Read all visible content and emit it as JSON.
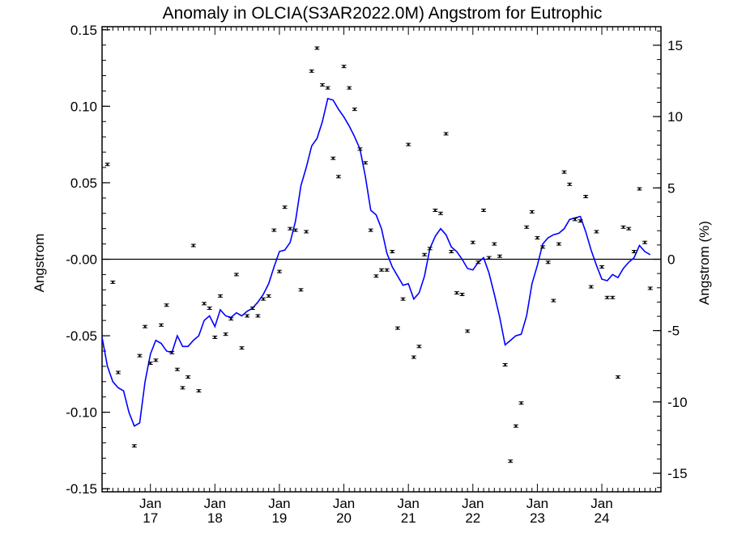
{
  "chart_data": {
    "type": "line",
    "title": "Anomaly in OLCIA(S3AR2022.0M) Angstrom for Eutrophic",
    "ylabel": "Angstrom",
    "ylabel_right": "Angstrom (%)",
    "ylim": [
      -0.152,
      0.152
    ],
    "ylim_right": [
      -16.3,
      16.3
    ],
    "xlim": [
      "2016-04",
      "2024-12"
    ],
    "y_ticks": [
      "-0.15",
      "-0.10",
      "-0.05",
      "-0.00",
      "0.05",
      "0.10",
      "0.15"
    ],
    "y_ticks_right": [
      "-15",
      "-10",
      "-5",
      "0",
      "5",
      "10",
      "15"
    ],
    "x_ticks": [
      {
        "month": "Jan",
        "year": "17",
        "date": "2017-01"
      },
      {
        "month": "Jan",
        "year": "18",
        "date": "2018-01"
      },
      {
        "month": "Jan",
        "year": "19",
        "date": "2019-01"
      },
      {
        "month": "Jan",
        "year": "20",
        "date": "2020-01"
      },
      {
        "month": "Jan",
        "year": "21",
        "date": "2021-01"
      },
      {
        "month": "Jan",
        "year": "22",
        "date": "2022-01"
      },
      {
        "month": "Jan",
        "year": "23",
        "date": "2023-01"
      },
      {
        "month": "Jan",
        "year": "24",
        "date": "2024-01"
      }
    ],
    "zero_line": true,
    "colors": {
      "line": "#0000ff",
      "points": "#000000",
      "axes": "#000000"
    },
    "series": [
      {
        "type": "scatter",
        "role": "monthly anomaly with error bars",
        "points": [
          [
            "2016-05",
            0.062
          ],
          [
            "2016-06",
            -0.015
          ],
          [
            "2016-07",
            -0.074
          ],
          [
            "2016-10",
            -0.122
          ],
          [
            "2016-11",
            -0.063
          ],
          [
            "2016-12",
            -0.044
          ],
          [
            "2017-01",
            -0.068
          ],
          [
            "2017-02",
            -0.066
          ],
          [
            "2017-03",
            -0.043
          ],
          [
            "2017-04",
            -0.03
          ],
          [
            "2017-05",
            -0.061
          ],
          [
            "2017-06",
            -0.072
          ],
          [
            "2017-07",
            -0.084
          ],
          [
            "2017-08",
            -0.077
          ],
          [
            "2017-09",
            0.009
          ],
          [
            "2017-10",
            -0.086
          ],
          [
            "2017-11",
            -0.029
          ],
          [
            "2017-12",
            -0.032
          ],
          [
            "2018-01",
            -0.051
          ],
          [
            "2018-02",
            -0.024
          ],
          [
            "2018-03",
            -0.049
          ],
          [
            "2018-04",
            -0.039
          ],
          [
            "2018-05",
            -0.01
          ],
          [
            "2018-06",
            -0.058
          ],
          [
            "2018-07",
            -0.037
          ],
          [
            "2018-08",
            -0.032
          ],
          [
            "2018-09",
            -0.037
          ],
          [
            "2018-10",
            -0.026
          ],
          [
            "2018-11",
            -0.024
          ],
          [
            "2018-12",
            0.019
          ],
          [
            "2019-01",
            -0.008
          ],
          [
            "2019-02",
            0.034
          ],
          [
            "2019-03",
            0.02
          ],
          [
            "2019-04",
            0.019
          ],
          [
            "2019-05",
            -0.02
          ],
          [
            "2019-06",
            0.018
          ],
          [
            "2019-07",
            0.123
          ],
          [
            "2019-08",
            0.138
          ],
          [
            "2019-09",
            0.114
          ],
          [
            "2019-10",
            0.112
          ],
          [
            "2019-11",
            0.066
          ],
          [
            "2019-12",
            0.054
          ],
          [
            "2020-01",
            0.126
          ],
          [
            "2020-02",
            0.112
          ],
          [
            "2020-03",
            0.098
          ],
          [
            "2020-04",
            0.072
          ],
          [
            "2020-05",
            0.063
          ],
          [
            "2020-06",
            0.019
          ],
          [
            "2020-07",
            -0.011
          ],
          [
            "2020-08",
            -0.007
          ],
          [
            "2020-09",
            -0.007
          ],
          [
            "2020-10",
            0.005
          ],
          [
            "2020-11",
            -0.045
          ],
          [
            "2020-12",
            -0.026
          ],
          [
            "2021-01",
            0.075
          ],
          [
            "2021-02",
            -0.064
          ],
          [
            "2021-03",
            -0.057
          ],
          [
            "2021-04",
            0.003
          ],
          [
            "2021-05",
            0.007
          ],
          [
            "2021-06",
            0.032
          ],
          [
            "2021-07",
            0.03
          ],
          [
            "2021-08",
            0.082
          ],
          [
            "2021-09",
            0.005
          ],
          [
            "2021-10",
            -0.022
          ],
          [
            "2021-11",
            -0.023
          ],
          [
            "2021-12",
            -0.047
          ],
          [
            "2022-01",
            0.011
          ],
          [
            "2022-02",
            -0.002
          ],
          [
            "2022-03",
            0.032
          ],
          [
            "2022-04",
            0.001
          ],
          [
            "2022-05",
            0.01
          ],
          [
            "2022-06",
            0.002
          ],
          [
            "2022-07",
            -0.069
          ],
          [
            "2022-08",
            -0.132
          ],
          [
            "2022-09",
            -0.109
          ],
          [
            "2022-10",
            -0.094
          ],
          [
            "2022-11",
            0.021
          ],
          [
            "2022-12",
            0.031
          ],
          [
            "2023-01",
            0.014
          ],
          [
            "2023-02",
            0.008
          ],
          [
            "2023-03",
            -0.002
          ],
          [
            "2023-04",
            -0.027
          ],
          [
            "2023-05",
            0.01
          ],
          [
            "2023-06",
            0.057
          ],
          [
            "2023-07",
            0.049
          ],
          [
            "2023-08",
            0.026
          ],
          [
            "2023-09",
            0.025
          ],
          [
            "2023-10",
            0.041
          ],
          [
            "2023-11",
            -0.018
          ],
          [
            "2023-12",
            0.018
          ],
          [
            "2024-01",
            -0.005
          ],
          [
            "2024-02",
            -0.025
          ],
          [
            "2024-03",
            -0.025
          ],
          [
            "2024-04",
            -0.077
          ],
          [
            "2024-05",
            0.021
          ],
          [
            "2024-06",
            0.02
          ],
          [
            "2024-07",
            0.005
          ],
          [
            "2024-08",
            0.046
          ],
          [
            "2024-09",
            0.011
          ],
          [
            "2024-10",
            -0.019
          ]
        ]
      },
      {
        "type": "line",
        "role": "smoothed anomaly",
        "points": [
          [
            "2016-04",
            -0.051
          ],
          [
            "2016-05",
            -0.07
          ],
          [
            "2016-06",
            -0.08
          ],
          [
            "2016-07",
            -0.084
          ],
          [
            "2016-08",
            -0.086
          ],
          [
            "2016-09",
            -0.1
          ],
          [
            "2016-10",
            -0.109
          ],
          [
            "2016-11",
            -0.107
          ],
          [
            "2016-12",
            -0.08
          ],
          [
            "2017-01",
            -0.062
          ],
          [
            "2017-02",
            -0.053
          ],
          [
            "2017-03",
            -0.055
          ],
          [
            "2017-04",
            -0.06
          ],
          [
            "2017-05",
            -0.061
          ],
          [
            "2017-06",
            -0.05
          ],
          [
            "2017-07",
            -0.057
          ],
          [
            "2017-08",
            -0.057
          ],
          [
            "2017-09",
            -0.053
          ],
          [
            "2017-10",
            -0.05
          ],
          [
            "2017-11",
            -0.04
          ],
          [
            "2017-12",
            -0.037
          ],
          [
            "2018-01",
            -0.044
          ],
          [
            "2018-02",
            -0.033
          ],
          [
            "2018-03",
            -0.037
          ],
          [
            "2018-04",
            -0.038
          ],
          [
            "2018-05",
            -0.035
          ],
          [
            "2018-06",
            -0.037
          ],
          [
            "2018-07",
            -0.034
          ],
          [
            "2018-08",
            -0.032
          ],
          [
            "2018-09",
            -0.028
          ],
          [
            "2018-10",
            -0.023
          ],
          [
            "2018-11",
            -0.016
          ],
          [
            "2018-12",
            -0.005
          ],
          [
            "2019-01",
            0.005
          ],
          [
            "2019-02",
            0.006
          ],
          [
            "2019-03",
            0.011
          ],
          [
            "2019-04",
            0.025
          ],
          [
            "2019-05",
            0.048
          ],
          [
            "2019-06",
            0.06
          ],
          [
            "2019-07",
            0.074
          ],
          [
            "2019-08",
            0.079
          ],
          [
            "2019-09",
            0.09
          ],
          [
            "2019-10",
            0.105
          ],
          [
            "2019-11",
            0.104
          ],
          [
            "2019-12",
            0.098
          ],
          [
            "2020-01",
            0.093
          ],
          [
            "2020-02",
            0.087
          ],
          [
            "2020-03",
            0.08
          ],
          [
            "2020-04",
            0.072
          ],
          [
            "2020-05",
            0.054
          ],
          [
            "2020-06",
            0.032
          ],
          [
            "2020-07",
            0.029
          ],
          [
            "2020-08",
            0.02
          ],
          [
            "2020-09",
            0.004
          ],
          [
            "2020-10",
            -0.005
          ],
          [
            "2020-11",
            -0.011
          ],
          [
            "2020-12",
            -0.017
          ],
          [
            "2021-01",
            -0.016
          ],
          [
            "2021-02",
            -0.026
          ],
          [
            "2021-03",
            -0.022
          ],
          [
            "2021-04",
            -0.011
          ],
          [
            "2021-05",
            0.007
          ],
          [
            "2021-06",
            0.015
          ],
          [
            "2021-07",
            0.02
          ],
          [
            "2021-08",
            0.016
          ],
          [
            "2021-09",
            0.008
          ],
          [
            "2021-10",
            0.005
          ],
          [
            "2021-11",
            0.0
          ],
          [
            "2021-12",
            -0.006
          ],
          [
            "2022-01",
            -0.007
          ],
          [
            "2022-02",
            -0.002
          ],
          [
            "2022-03",
            0.001
          ],
          [
            "2022-04",
            -0.009
          ],
          [
            "2022-05",
            -0.023
          ],
          [
            "2022-06",
            -0.038
          ],
          [
            "2022-07",
            -0.056
          ],
          [
            "2022-08",
            -0.053
          ],
          [
            "2022-09",
            -0.05
          ],
          [
            "2022-10",
            -0.049
          ],
          [
            "2022-11",
            -0.037
          ],
          [
            "2022-12",
            -0.016
          ],
          [
            "2023-01",
            -0.004
          ],
          [
            "2023-02",
            0.01
          ],
          [
            "2023-03",
            0.014
          ],
          [
            "2023-04",
            0.016
          ],
          [
            "2023-05",
            0.017
          ],
          [
            "2023-06",
            0.02
          ],
          [
            "2023-07",
            0.026
          ],
          [
            "2023-08",
            0.027
          ],
          [
            "2023-09",
            0.028
          ],
          [
            "2023-10",
            0.018
          ],
          [
            "2023-11",
            0.006
          ],
          [
            "2023-12",
            -0.004
          ],
          [
            "2024-01",
            -0.013
          ],
          [
            "2024-02",
            -0.014
          ],
          [
            "2024-03",
            -0.01
          ],
          [
            "2024-04",
            -0.012
          ],
          [
            "2024-05",
            -0.006
          ],
          [
            "2024-06",
            -0.002
          ],
          [
            "2024-07",
            0.001
          ],
          [
            "2024-08",
            0.009
          ],
          [
            "2024-09",
            0.005
          ],
          [
            "2024-10",
            0.003
          ]
        ]
      }
    ]
  }
}
